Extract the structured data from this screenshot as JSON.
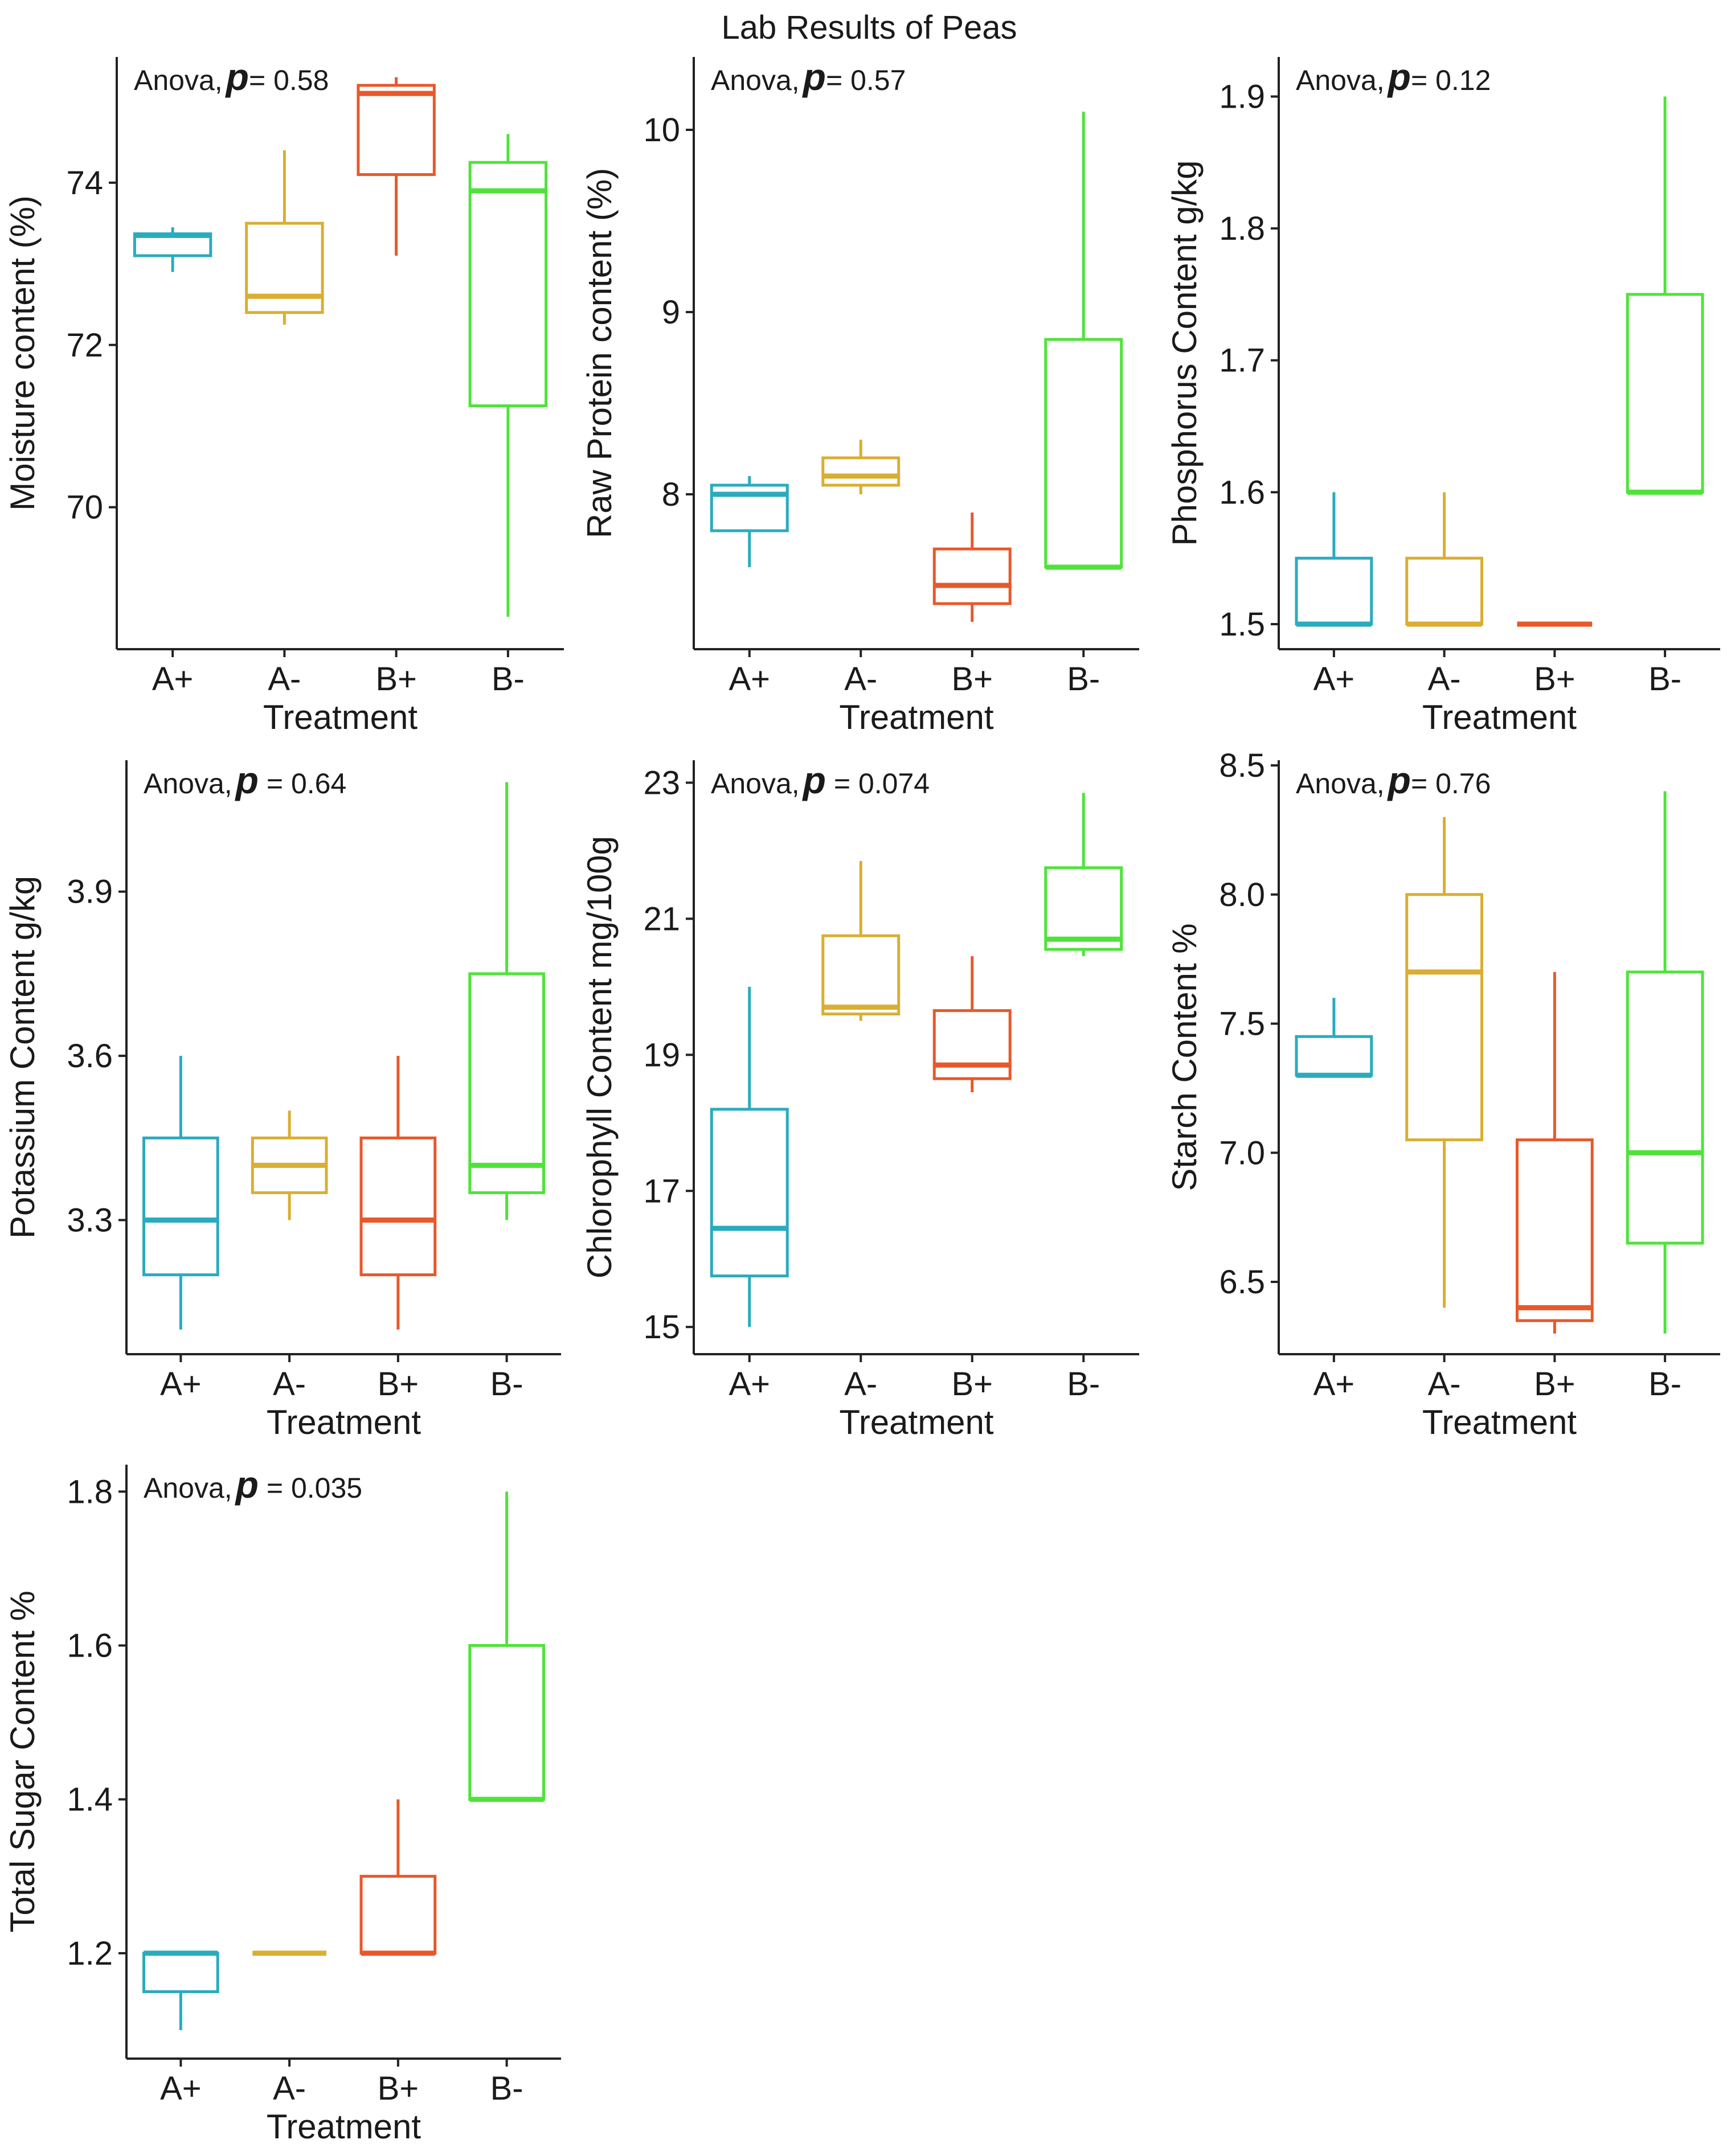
{
  "title": "Lab Results of Peas",
  "colors": {
    "A+": "#2AABBE",
    "A-": "#D9AE32",
    "B+": "#E8582A",
    "B-": "#4FE33A"
  },
  "chart_data": [
    {
      "type": "box",
      "ylabel": "Moisture content (%)",
      "xlabel": "Treatment",
      "annotation": {
        "prefix": "Anova,",
        "p_symbol": "p",
        "value": "= 0.58"
      },
      "ylim": [
        68.25,
        75.55
      ],
      "yticks": [
        70,
        72,
        74
      ],
      "ytick_labels": [
        "70",
        "72",
        "74"
      ],
      "categories": [
        "A+",
        "A-",
        "B+",
        "B-"
      ],
      "boxes": [
        {
          "low": 72.9,
          "q1": 73.1,
          "median": 73.35,
          "q3": 73.37,
          "high": 73.45
        },
        {
          "low": 72.25,
          "q1": 72.4,
          "median": 72.6,
          "q3": 73.5,
          "high": 74.4
        },
        {
          "low": 73.1,
          "q1": 74.1,
          "median": 75.1,
          "q3": 75.2,
          "high": 75.3
        },
        {
          "low": 68.65,
          "q1": 71.25,
          "median": 73.9,
          "q3": 74.25,
          "high": 74.6
        }
      ]
    },
    {
      "type": "box",
      "ylabel": "Raw Protein content (%)",
      "xlabel": "Treatment",
      "annotation": {
        "prefix": "Anova,",
        "p_symbol": "p",
        "value": "= 0.57"
      },
      "ylim": [
        7.15,
        10.4
      ],
      "yticks": [
        8,
        9,
        10
      ],
      "ytick_labels": [
        "8",
        "9",
        "10"
      ],
      "categories": [
        "A+",
        "A-",
        "B+",
        "B-"
      ],
      "boxes": [
        {
          "low": 7.6,
          "q1": 7.8,
          "median": 8.0,
          "q3": 8.05,
          "high": 8.1
        },
        {
          "low": 8.0,
          "q1": 8.05,
          "median": 8.1,
          "q3": 8.2,
          "high": 8.3
        },
        {
          "low": 7.3,
          "q1": 7.4,
          "median": 7.5,
          "q3": 7.7,
          "high": 7.9
        },
        {
          "low": 7.6,
          "q1": 7.6,
          "median": 7.6,
          "q3": 8.85,
          "high": 10.1
        }
      ]
    },
    {
      "type": "box",
      "ylabel": "Phosphorus Content g/kg",
      "xlabel": "Treatment",
      "annotation": {
        "prefix": "Anova,",
        "p_symbol": "p",
        "value": "= 0.12"
      },
      "ylim": [
        1.481,
        1.93
      ],
      "yticks": [
        1.5,
        1.6,
        1.7,
        1.8,
        1.9
      ],
      "ytick_labels": [
        "1.5",
        "1.6",
        "1.7",
        "1.8",
        "1.9"
      ],
      "categories": [
        "A+",
        "A-",
        "B+",
        "B-"
      ],
      "boxes": [
        {
          "low": 1.5,
          "q1": 1.5,
          "median": 1.5,
          "q3": 1.55,
          "high": 1.6
        },
        {
          "low": 1.5,
          "q1": 1.5,
          "median": 1.5,
          "q3": 1.55,
          "high": 1.6
        },
        {
          "low": 1.5,
          "q1": 1.5,
          "median": 1.5,
          "q3": 1.5,
          "high": 1.5
        },
        {
          "low": 1.6,
          "q1": 1.6,
          "median": 1.6,
          "q3": 1.75,
          "high": 1.9
        }
      ]
    },
    {
      "type": "box",
      "ylabel": "Potassium Content g/kg",
      "xlabel": "Treatment",
      "annotation": {
        "prefix": "Anova,",
        "p_symbol": "p",
        "value": " = 0.64"
      },
      "ylim": [
        3.055,
        4.14
      ],
      "yticks": [
        3.3,
        3.6,
        3.9
      ],
      "ytick_labels": [
        "3.3",
        "3.6",
        "3.9"
      ],
      "categories": [
        "A+",
        "A-",
        "B+",
        "B-"
      ],
      "boxes": [
        {
          "low": 3.1,
          "q1": 3.2,
          "median": 3.3,
          "q3": 3.45,
          "high": 3.6
        },
        {
          "low": 3.3,
          "q1": 3.35,
          "median": 3.4,
          "q3": 3.45,
          "high": 3.5
        },
        {
          "low": 3.1,
          "q1": 3.2,
          "median": 3.3,
          "q3": 3.45,
          "high": 3.6
        },
        {
          "low": 3.3,
          "q1": 3.35,
          "median": 3.4,
          "q3": 3.75,
          "high": 4.1
        }
      ]
    },
    {
      "type": "box",
      "ylabel": "Chlorophyll Content mg/100g",
      "xlabel": "Treatment",
      "annotation": {
        "prefix": "Anova,",
        "p_symbol": "p",
        "value": " = 0.074"
      },
      "ylim": [
        14.6,
        23.33
      ],
      "yticks": [
        15,
        17,
        19,
        21,
        23
      ],
      "ytick_labels": [
        "15",
        "17",
        "19",
        "21",
        "23"
      ],
      "categories": [
        "A+",
        "A-",
        "B+",
        "B-"
      ],
      "boxes": [
        {
          "low": 15.0,
          "q1": 15.75,
          "median": 16.45,
          "q3": 18.2,
          "high": 20.0
        },
        {
          "low": 19.5,
          "q1": 19.6,
          "median": 19.7,
          "q3": 20.75,
          "high": 21.85
        },
        {
          "low": 18.45,
          "q1": 18.65,
          "median": 18.85,
          "q3": 19.65,
          "high": 20.45
        },
        {
          "low": 20.45,
          "q1": 20.55,
          "median": 20.7,
          "q3": 21.75,
          "high": 22.85
        }
      ]
    },
    {
      "type": "box",
      "ylabel": "Starch Content %",
      "xlabel": "Treatment",
      "annotation": {
        "prefix": "Anova,",
        "p_symbol": "p",
        "value": "= 0.76"
      },
      "ylim": [
        6.22,
        8.52
      ],
      "yticks": [
        6.5,
        7.0,
        7.5,
        8.0,
        8.5
      ],
      "ytick_labels": [
        "6.5",
        "7.0",
        "7.5",
        "8.0",
        "8.5"
      ],
      "categories": [
        "A+",
        "A-",
        "B+",
        "B-"
      ],
      "boxes": [
        {
          "low": 7.3,
          "q1": 7.3,
          "median": 7.3,
          "q3": 7.45,
          "high": 7.6
        },
        {
          "low": 6.4,
          "q1": 7.05,
          "median": 7.7,
          "q3": 8.0,
          "high": 8.3
        },
        {
          "low": 6.3,
          "q1": 6.35,
          "median": 6.4,
          "q3": 7.05,
          "high": 7.7
        },
        {
          "low": 6.3,
          "q1": 6.65,
          "median": 7.0,
          "q3": 7.7,
          "high": 8.4
        }
      ]
    },
    {
      "type": "box",
      "ylabel": "Total Sugar Content %",
      "xlabel": "Treatment",
      "annotation": {
        "prefix": "Anova,",
        "p_symbol": "p",
        "value": " = 0.035"
      },
      "ylim": [
        1.063,
        1.835
      ],
      "yticks": [
        1.2,
        1.4,
        1.6,
        1.8
      ],
      "ytick_labels": [
        "1.2",
        "1.4",
        "1.6",
        "1.8"
      ],
      "categories": [
        "A+",
        "A-",
        "B+",
        "B-"
      ],
      "boxes": [
        {
          "low": 1.1,
          "q1": 1.15,
          "median": 1.2,
          "q3": 1.2,
          "high": 1.2
        },
        {
          "low": 1.2,
          "q1": 1.2,
          "median": 1.2,
          "q3": 1.2,
          "high": 1.2
        },
        {
          "low": 1.2,
          "q1": 1.2,
          "median": 1.2,
          "q3": 1.3,
          "high": 1.4
        },
        {
          "low": 1.4,
          "q1": 1.4,
          "median": 1.4,
          "q3": 1.6,
          "high": 1.8
        }
      ]
    }
  ]
}
